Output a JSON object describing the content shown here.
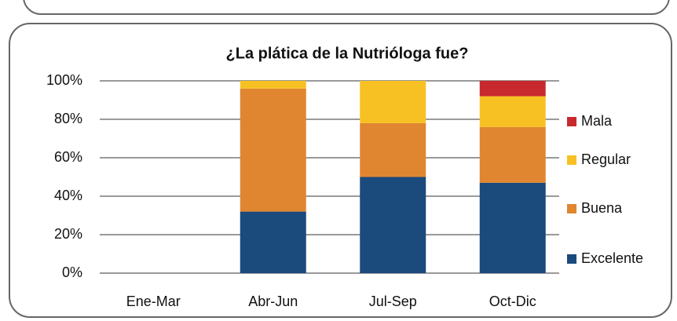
{
  "chart_data": {
    "type": "stacked_bar",
    "title": "¿La plática de la Nutrióloga fue?",
    "categories": [
      "Ene-Mar",
      "Abr-Jun",
      "Jul-Sep",
      "Oct-Dic"
    ],
    "series": [
      {
        "name": "Excelente",
        "color": "#1b4a7c",
        "values": [
          0,
          32,
          50,
          47
        ]
      },
      {
        "name": "Buena",
        "color": "#e08630",
        "values": [
          0,
          64,
          28,
          29
        ]
      },
      {
        "name": "Regular",
        "color": "#f7c123",
        "values": [
          0,
          4,
          22,
          16
        ]
      },
      {
        "name": "Mala",
        "color": "#c8292e",
        "values": [
          0,
          0,
          0,
          8
        ]
      }
    ],
    "ylim": [
      0,
      100
    ],
    "yticks": [
      {
        "value": 0,
        "label": "0%"
      },
      {
        "value": 20,
        "label": "20%"
      },
      {
        "value": 40,
        "label": "40%"
      },
      {
        "value": 60,
        "label": "60%"
      },
      {
        "value": 80,
        "label": "80%"
      },
      {
        "value": 100,
        "label": "100%"
      }
    ],
    "grid": true,
    "legend": "right"
  }
}
